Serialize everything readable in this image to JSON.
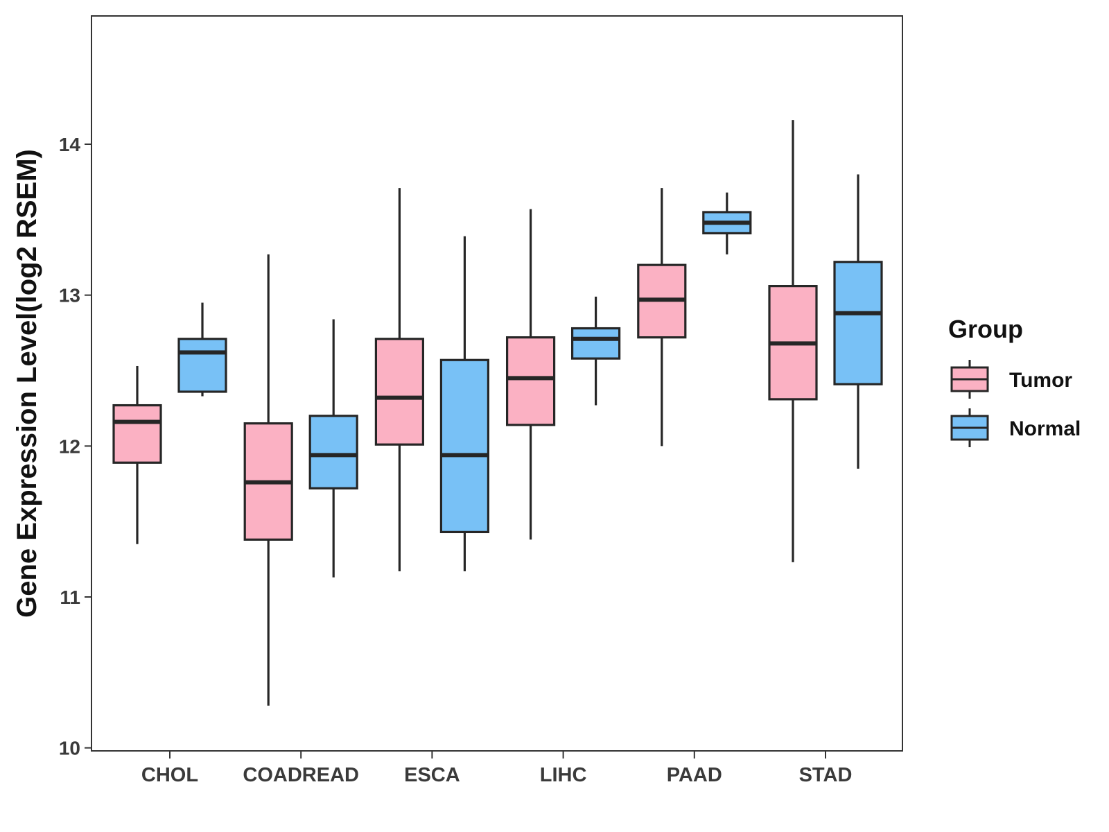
{
  "chart_data": {
    "type": "boxplot",
    "title": "",
    "xlabel": "",
    "ylabel": "Gene Expression Level(log2 RSEM)",
    "ylim": [
      9.98,
      14.85
    ],
    "yticks": [
      10,
      11,
      12,
      13,
      14
    ],
    "grid": false,
    "legend_title": "Group",
    "legend_position": "right",
    "categories": [
      "CHOL",
      "COADREAD",
      "ESCA",
      "LIHC",
      "PAAD",
      "STAD"
    ],
    "series": [
      {
        "name": "Tumor",
        "color": "#fbb1c3",
        "boxes": [
          {
            "min": 11.35,
            "q1": 11.89,
            "median": 12.16,
            "q3": 12.27,
            "max": 12.53
          },
          {
            "min": 10.28,
            "q1": 11.38,
            "median": 11.76,
            "q3": 12.15,
            "max": 13.27
          },
          {
            "min": 11.17,
            "q1": 12.01,
            "median": 12.32,
            "q3": 12.71,
            "max": 13.71
          },
          {
            "min": 11.38,
            "q1": 12.14,
            "median": 12.45,
            "q3": 12.72,
            "max": 13.57
          },
          {
            "min": 12.0,
            "q1": 12.72,
            "median": 12.97,
            "q3": 13.2,
            "max": 13.71
          },
          {
            "min": 11.23,
            "q1": 12.31,
            "median": 12.68,
            "q3": 13.06,
            "max": 14.16
          }
        ]
      },
      {
        "name": "Normal",
        "color": "#78c1f6",
        "boxes": [
          {
            "min": 12.33,
            "q1": 12.36,
            "median": 12.62,
            "q3": 12.71,
            "max": 12.95
          },
          {
            "min": 11.13,
            "q1": 11.72,
            "median": 11.94,
            "q3": 12.2,
            "max": 12.84
          },
          {
            "min": 11.17,
            "q1": 11.43,
            "median": 11.94,
            "q3": 12.57,
            "max": 13.39
          },
          {
            "min": 12.27,
            "q1": 12.58,
            "median": 12.71,
            "q3": 12.78,
            "max": 12.99
          },
          {
            "min": 13.27,
            "q1": 13.41,
            "median": 13.48,
            "q3": 13.55,
            "max": 13.68
          },
          {
            "min": 11.85,
            "q1": 12.41,
            "median": 12.88,
            "q3": 13.22,
            "max": 13.8
          }
        ]
      }
    ]
  }
}
